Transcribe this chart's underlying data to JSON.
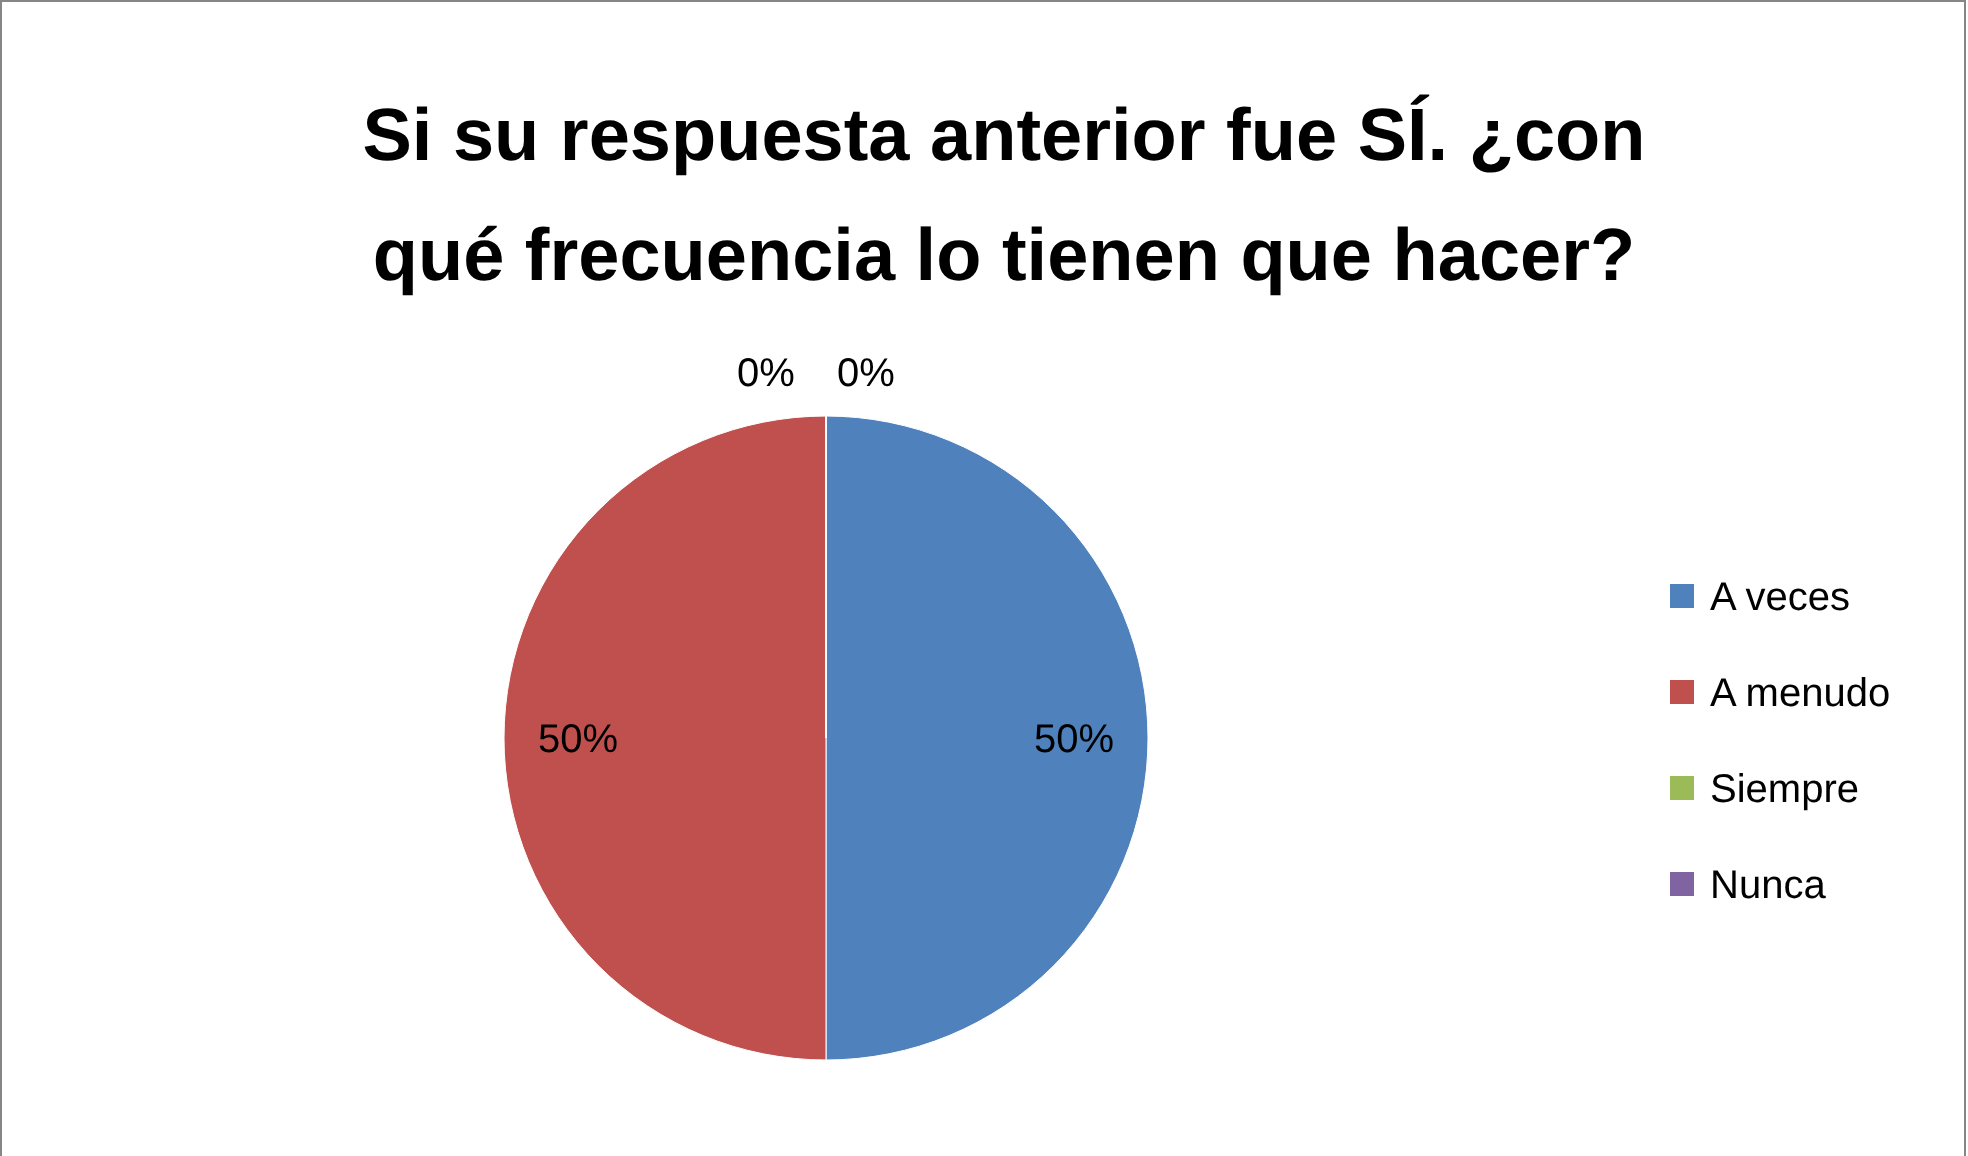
{
  "chart_data": {
    "type": "pie",
    "title": "Si su respuesta anterior fue SÍ. ¿con qué frecuencia lo tienen que hacer?",
    "categories": [
      "A veces",
      "A menudo",
      "Siempre",
      "Nunca"
    ],
    "values": [
      50,
      50,
      0,
      0
    ],
    "colors": [
      "#4f81bd",
      "#c0504d",
      "#9bbb59",
      "#8064a2"
    ],
    "value_labels": [
      "50%",
      "50%",
      "0%",
      "0%"
    ],
    "legend": "right"
  }
}
